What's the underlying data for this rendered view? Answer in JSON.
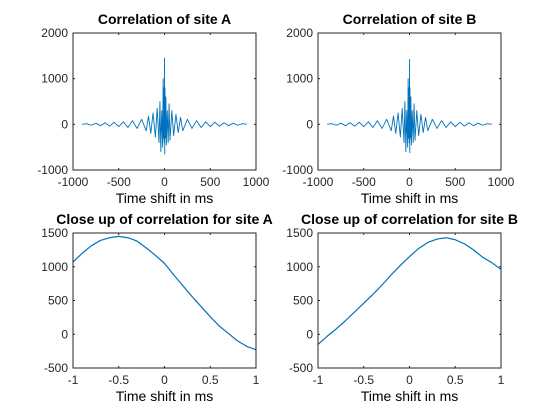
{
  "colors": {
    "series": "#0072bd",
    "axis": "#262626"
  },
  "chart_data": [
    {
      "type": "line",
      "title": "Correlation of site A",
      "xlabel": "Time shift in ms",
      "ylabel": "",
      "xlim": [
        -1000,
        1000
      ],
      "ylim": [
        -1000,
        2000
      ],
      "xticks": [
        -1000,
        -500,
        0,
        500,
        1000
      ],
      "xtick_labels": [
        "-1000",
        "-500",
        "0",
        "500",
        "1000"
      ],
      "yticks": [
        -1000,
        0,
        1000,
        2000
      ],
      "ytick_labels": [
        "-1000",
        "0",
        "1000",
        "2000"
      ],
      "grid": false,
      "series": [
        {
          "x": [
            -900,
            -850,
            -800,
            -750,
            -700,
            -650,
            -600,
            -550,
            -500,
            -450,
            -400,
            -350,
            -300,
            -250,
            -200,
            -175,
            -150,
            -125,
            -100,
            -80,
            -60,
            -50,
            -40,
            -30,
            -20,
            -15,
            -10,
            -5,
            -3,
            -1,
            0,
            1,
            3,
            5,
            10,
            15,
            20,
            30,
            40,
            50,
            60,
            80,
            100,
            125,
            150,
            175,
            200,
            250,
            300,
            350,
            400,
            450,
            500,
            550,
            600,
            650,
            700,
            750,
            800,
            850,
            900
          ],
          "y": [
            0,
            15,
            -20,
            25,
            -30,
            35,
            -40,
            45,
            -50,
            55,
            -70,
            80,
            -90,
            110,
            -140,
            180,
            -200,
            250,
            -280,
            350,
            -400,
            500,
            -600,
            300,
            -500,
            1000,
            -300,
            800,
            -400,
            600,
            1450,
            200,
            -650,
            800,
            -300,
            600,
            -450,
            300,
            -400,
            450,
            -350,
            300,
            -250,
            220,
            -180,
            150,
            -140,
            110,
            -90,
            80,
            -70,
            55,
            -50,
            45,
            -40,
            35,
            -30,
            25,
            -20,
            15,
            0
          ]
        }
      ]
    },
    {
      "type": "line",
      "title": "Correlation of site B",
      "xlabel": "Time shift in ms",
      "ylabel": "",
      "xlim": [
        -1000,
        1000
      ],
      "ylim": [
        -1000,
        2000
      ],
      "xticks": [
        -1000,
        -500,
        0,
        500,
        1000
      ],
      "xtick_labels": [
        "-1000",
        "-500",
        "0",
        "500",
        "1000"
      ],
      "yticks": [
        -1000,
        0,
        1000,
        2000
      ],
      "ytick_labels": [
        "-1000",
        "0",
        "1000",
        "2000"
      ],
      "grid": false,
      "series": [
        {
          "x": [
            -900,
            -850,
            -800,
            -750,
            -700,
            -650,
            -600,
            -550,
            -500,
            -450,
            -400,
            -350,
            -300,
            -250,
            -200,
            -175,
            -150,
            -125,
            -100,
            -80,
            -60,
            -50,
            -40,
            -30,
            -20,
            -15,
            -10,
            -5,
            -3,
            -1,
            0,
            1,
            3,
            5,
            10,
            15,
            20,
            30,
            40,
            50,
            60,
            80,
            100,
            125,
            150,
            175,
            200,
            250,
            300,
            350,
            400,
            450,
            500,
            550,
            600,
            650,
            700,
            750,
            800,
            850,
            900
          ],
          "y": [
            0,
            15,
            -20,
            25,
            -30,
            35,
            -40,
            45,
            -50,
            55,
            -70,
            80,
            -90,
            110,
            -140,
            180,
            -200,
            250,
            -280,
            350,
            -400,
            500,
            -600,
            300,
            -500,
            1000,
            -300,
            800,
            -400,
            600,
            1420,
            200,
            -620,
            800,
            -300,
            600,
            -450,
            300,
            -400,
            450,
            -350,
            300,
            -250,
            220,
            -180,
            150,
            -140,
            110,
            -90,
            80,
            -70,
            55,
            -50,
            45,
            -40,
            35,
            -30,
            25,
            -20,
            15,
            0
          ]
        }
      ]
    },
    {
      "type": "line",
      "title": "Close up of correlation for site A",
      "xlabel": "Time shift in ms",
      "ylabel": "",
      "xlim": [
        -1,
        1
      ],
      "ylim": [
        -500,
        1500
      ],
      "xticks": [
        -1,
        -0.5,
        0,
        0.5,
        1
      ],
      "xtick_labels": [
        "-1",
        "-0.5",
        "0",
        "0.5",
        "1"
      ],
      "yticks": [
        -500,
        0,
        500,
        1000,
        1500
      ],
      "ytick_labels": [
        "-500",
        "0",
        "500",
        "1000",
        "1500"
      ],
      "grid": false,
      "series": [
        {
          "x": [
            -1.0,
            -0.9,
            -0.8,
            -0.7,
            -0.6,
            -0.5,
            -0.4,
            -0.3,
            -0.2,
            -0.1,
            0.0,
            0.1,
            0.2,
            0.3,
            0.4,
            0.5,
            0.6,
            0.7,
            0.8,
            0.9,
            1.0
          ],
          "y": [
            1070,
            1200,
            1310,
            1390,
            1430,
            1450,
            1430,
            1380,
            1280,
            1170,
            1050,
            880,
            720,
            560,
            410,
            260,
            120,
            10,
            -100,
            -180,
            -230
          ]
        }
      ]
    },
    {
      "type": "line",
      "title": "Close up of correlation for site B",
      "xlabel": "Time shift in ms",
      "ylabel": "",
      "xlim": [
        -1,
        1
      ],
      "ylim": [
        -500,
        1500
      ],
      "xticks": [
        -1,
        -0.5,
        0,
        0.5,
        1
      ],
      "xtick_labels": [
        "-1",
        "-0.5",
        "0",
        "0.5",
        "1"
      ],
      "yticks": [
        -500,
        0,
        500,
        1000,
        1500
      ],
      "ytick_labels": [
        "-500",
        "0",
        "500",
        "1000",
        "1500"
      ],
      "grid": false,
      "series": [
        {
          "x": [
            -1.0,
            -0.9,
            -0.8,
            -0.7,
            -0.6,
            -0.5,
            -0.4,
            -0.3,
            -0.2,
            -0.1,
            0.0,
            0.1,
            0.2,
            0.3,
            0.4,
            0.5,
            0.6,
            0.7,
            0.8,
            0.9,
            1.0
          ],
          "y": [
            -150,
            -30,
            80,
            200,
            330,
            460,
            590,
            730,
            880,
            1020,
            1150,
            1270,
            1360,
            1410,
            1430,
            1400,
            1340,
            1250,
            1140,
            1060,
            960
          ]
        }
      ]
    }
  ]
}
